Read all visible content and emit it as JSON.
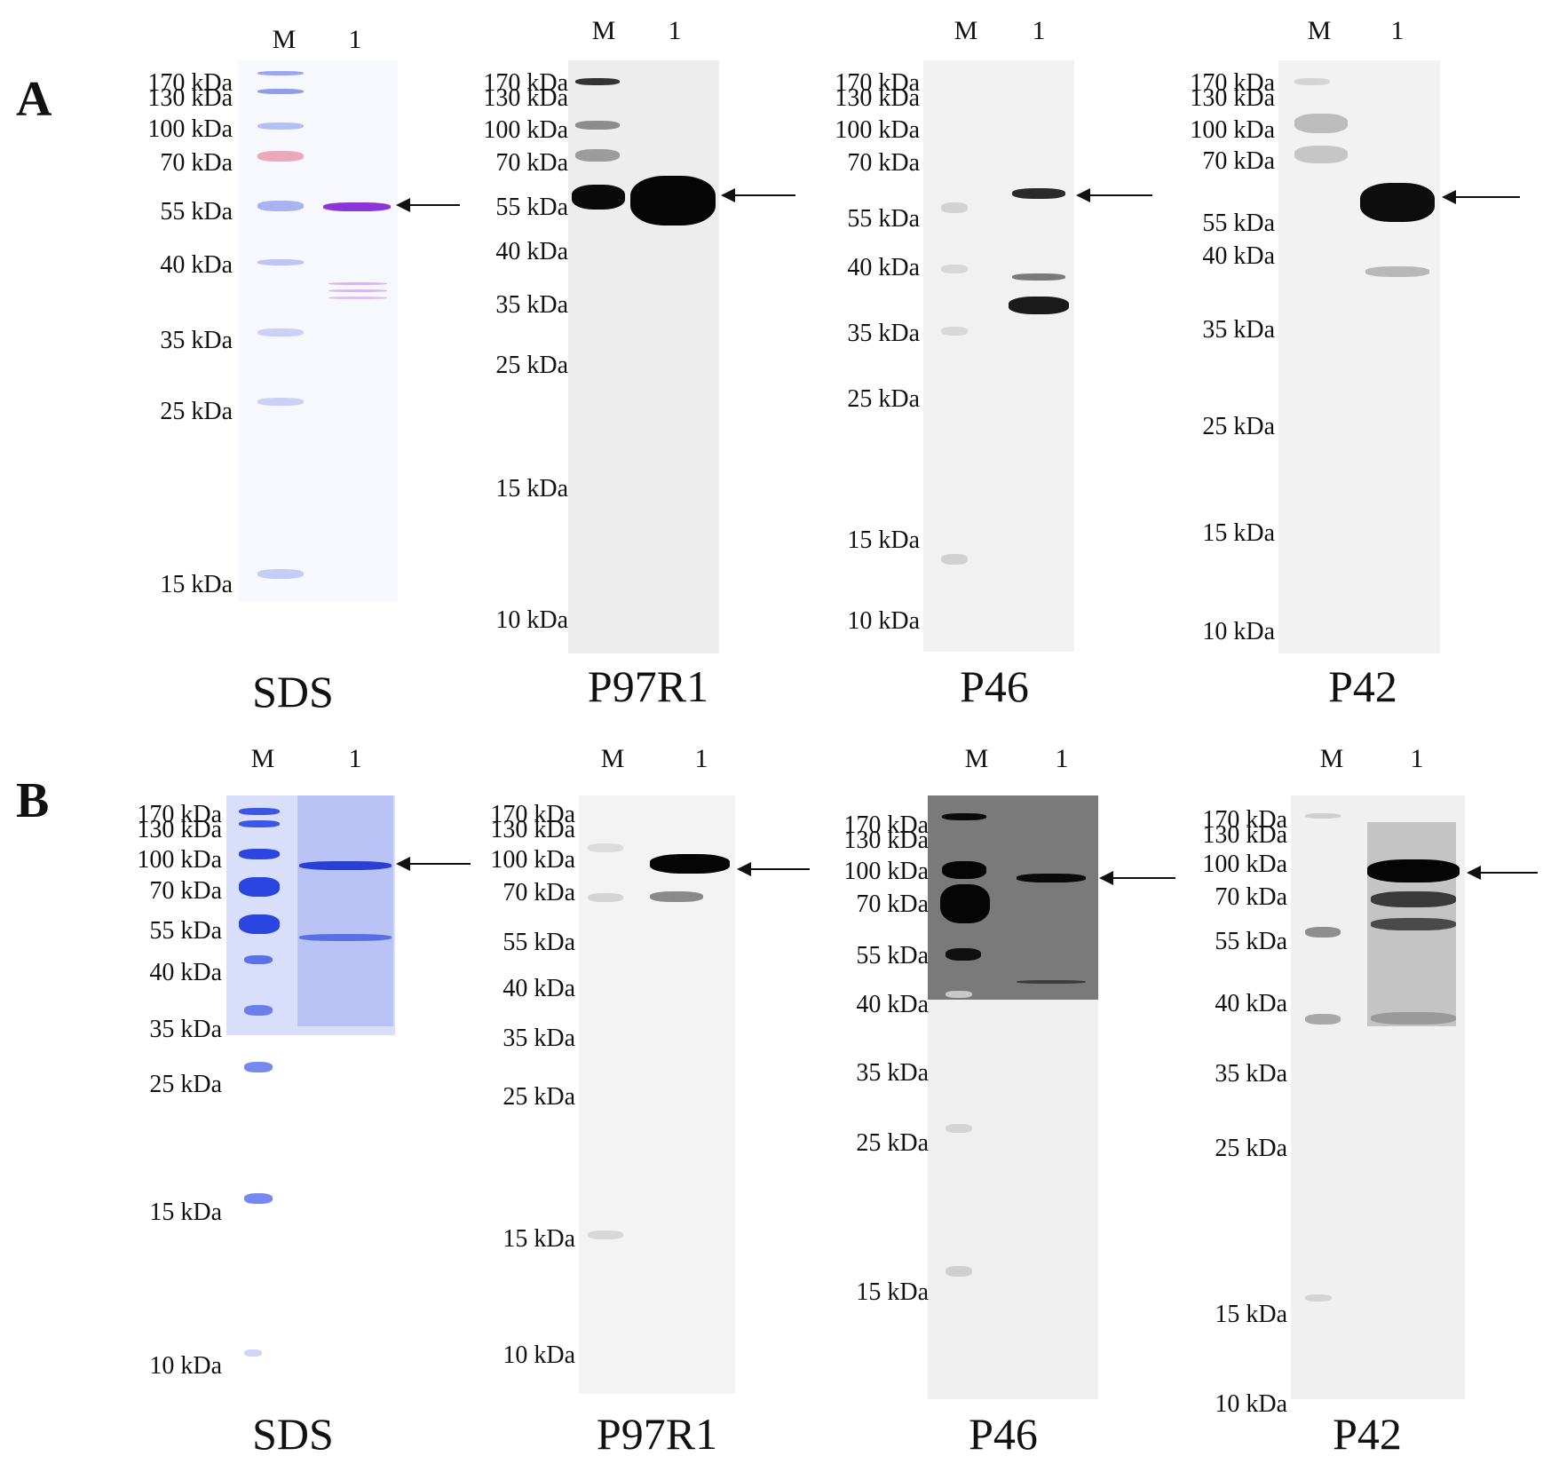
{
  "panels": {
    "a_label": "A",
    "b_label": "B"
  },
  "lanes": {
    "marker": "M",
    "sample": "1"
  },
  "blot_titles": {
    "sds": "SDS",
    "p97r1": "P97R1",
    "p46": "P46",
    "p42": "P42"
  },
  "ladders": {
    "a_sds": [
      "170 kDa",
      "130 kDa",
      "100 kDa",
      "70 kDa",
      "55 kDa",
      "40 kDa",
      "35 kDa",
      "25 kDa",
      "15 kDa"
    ],
    "a_p97r1": [
      "170 kDa",
      "130 kDa",
      "100 kDa",
      "70 kDa",
      "55 kDa",
      "40 kDa",
      "35 kDa",
      "25 kDa",
      "15 kDa",
      "10 kDa"
    ],
    "a_p46": [
      "170 kDa",
      "130 kDa",
      "100 kDa",
      "70 kDa",
      "55 kDa",
      "40 kDa",
      "35 kDa",
      "25 kDa",
      "15 kDa",
      "10 kDa"
    ],
    "a_p42": [
      "170 kDa",
      "130 kDa",
      "100 kDa",
      "70 kDa",
      "55 kDa",
      "40 kDa",
      "35 kDa",
      "25 kDa",
      "15 kDa",
      "10 kDa"
    ],
    "b_sds": [
      "170 kDa",
      "130 kDa",
      "100 kDa",
      "70 kDa",
      "55 kDa",
      "40 kDa",
      "35 kDa",
      "25 kDa",
      "15 kDa",
      "10 kDa"
    ],
    "b_p97r1": [
      "170 kDa",
      "130 kDa",
      "100 kDa",
      "70 kDa",
      "55 kDa",
      "40 kDa",
      "35 kDa",
      "25 kDa",
      "15 kDa",
      "10 kDa"
    ],
    "b_p46": [
      "170 kDa",
      "130 kDa",
      "100 kDa",
      "70 kDa",
      "55 kDa",
      "40 kDa",
      "35 kDa",
      "25 kDa",
      "15 kDa"
    ],
    "b_p42": [
      "170 kDa",
      "130 kDa",
      "100 kDa",
      "70 kDa",
      "55 kDa",
      "40 kDa",
      "35 kDa",
      "25 kDa",
      "15 kDa",
      "10 kDa"
    ]
  },
  "colors": {
    "coomassie": "#3b55e6",
    "coomassie_light": "#c9d1f7",
    "target_band_a_sds": "#8a35d6",
    "marker_70_pink": "#e98aa0",
    "blot_dark": "#0a0a0a",
    "blot_bg": "#ececec"
  }
}
